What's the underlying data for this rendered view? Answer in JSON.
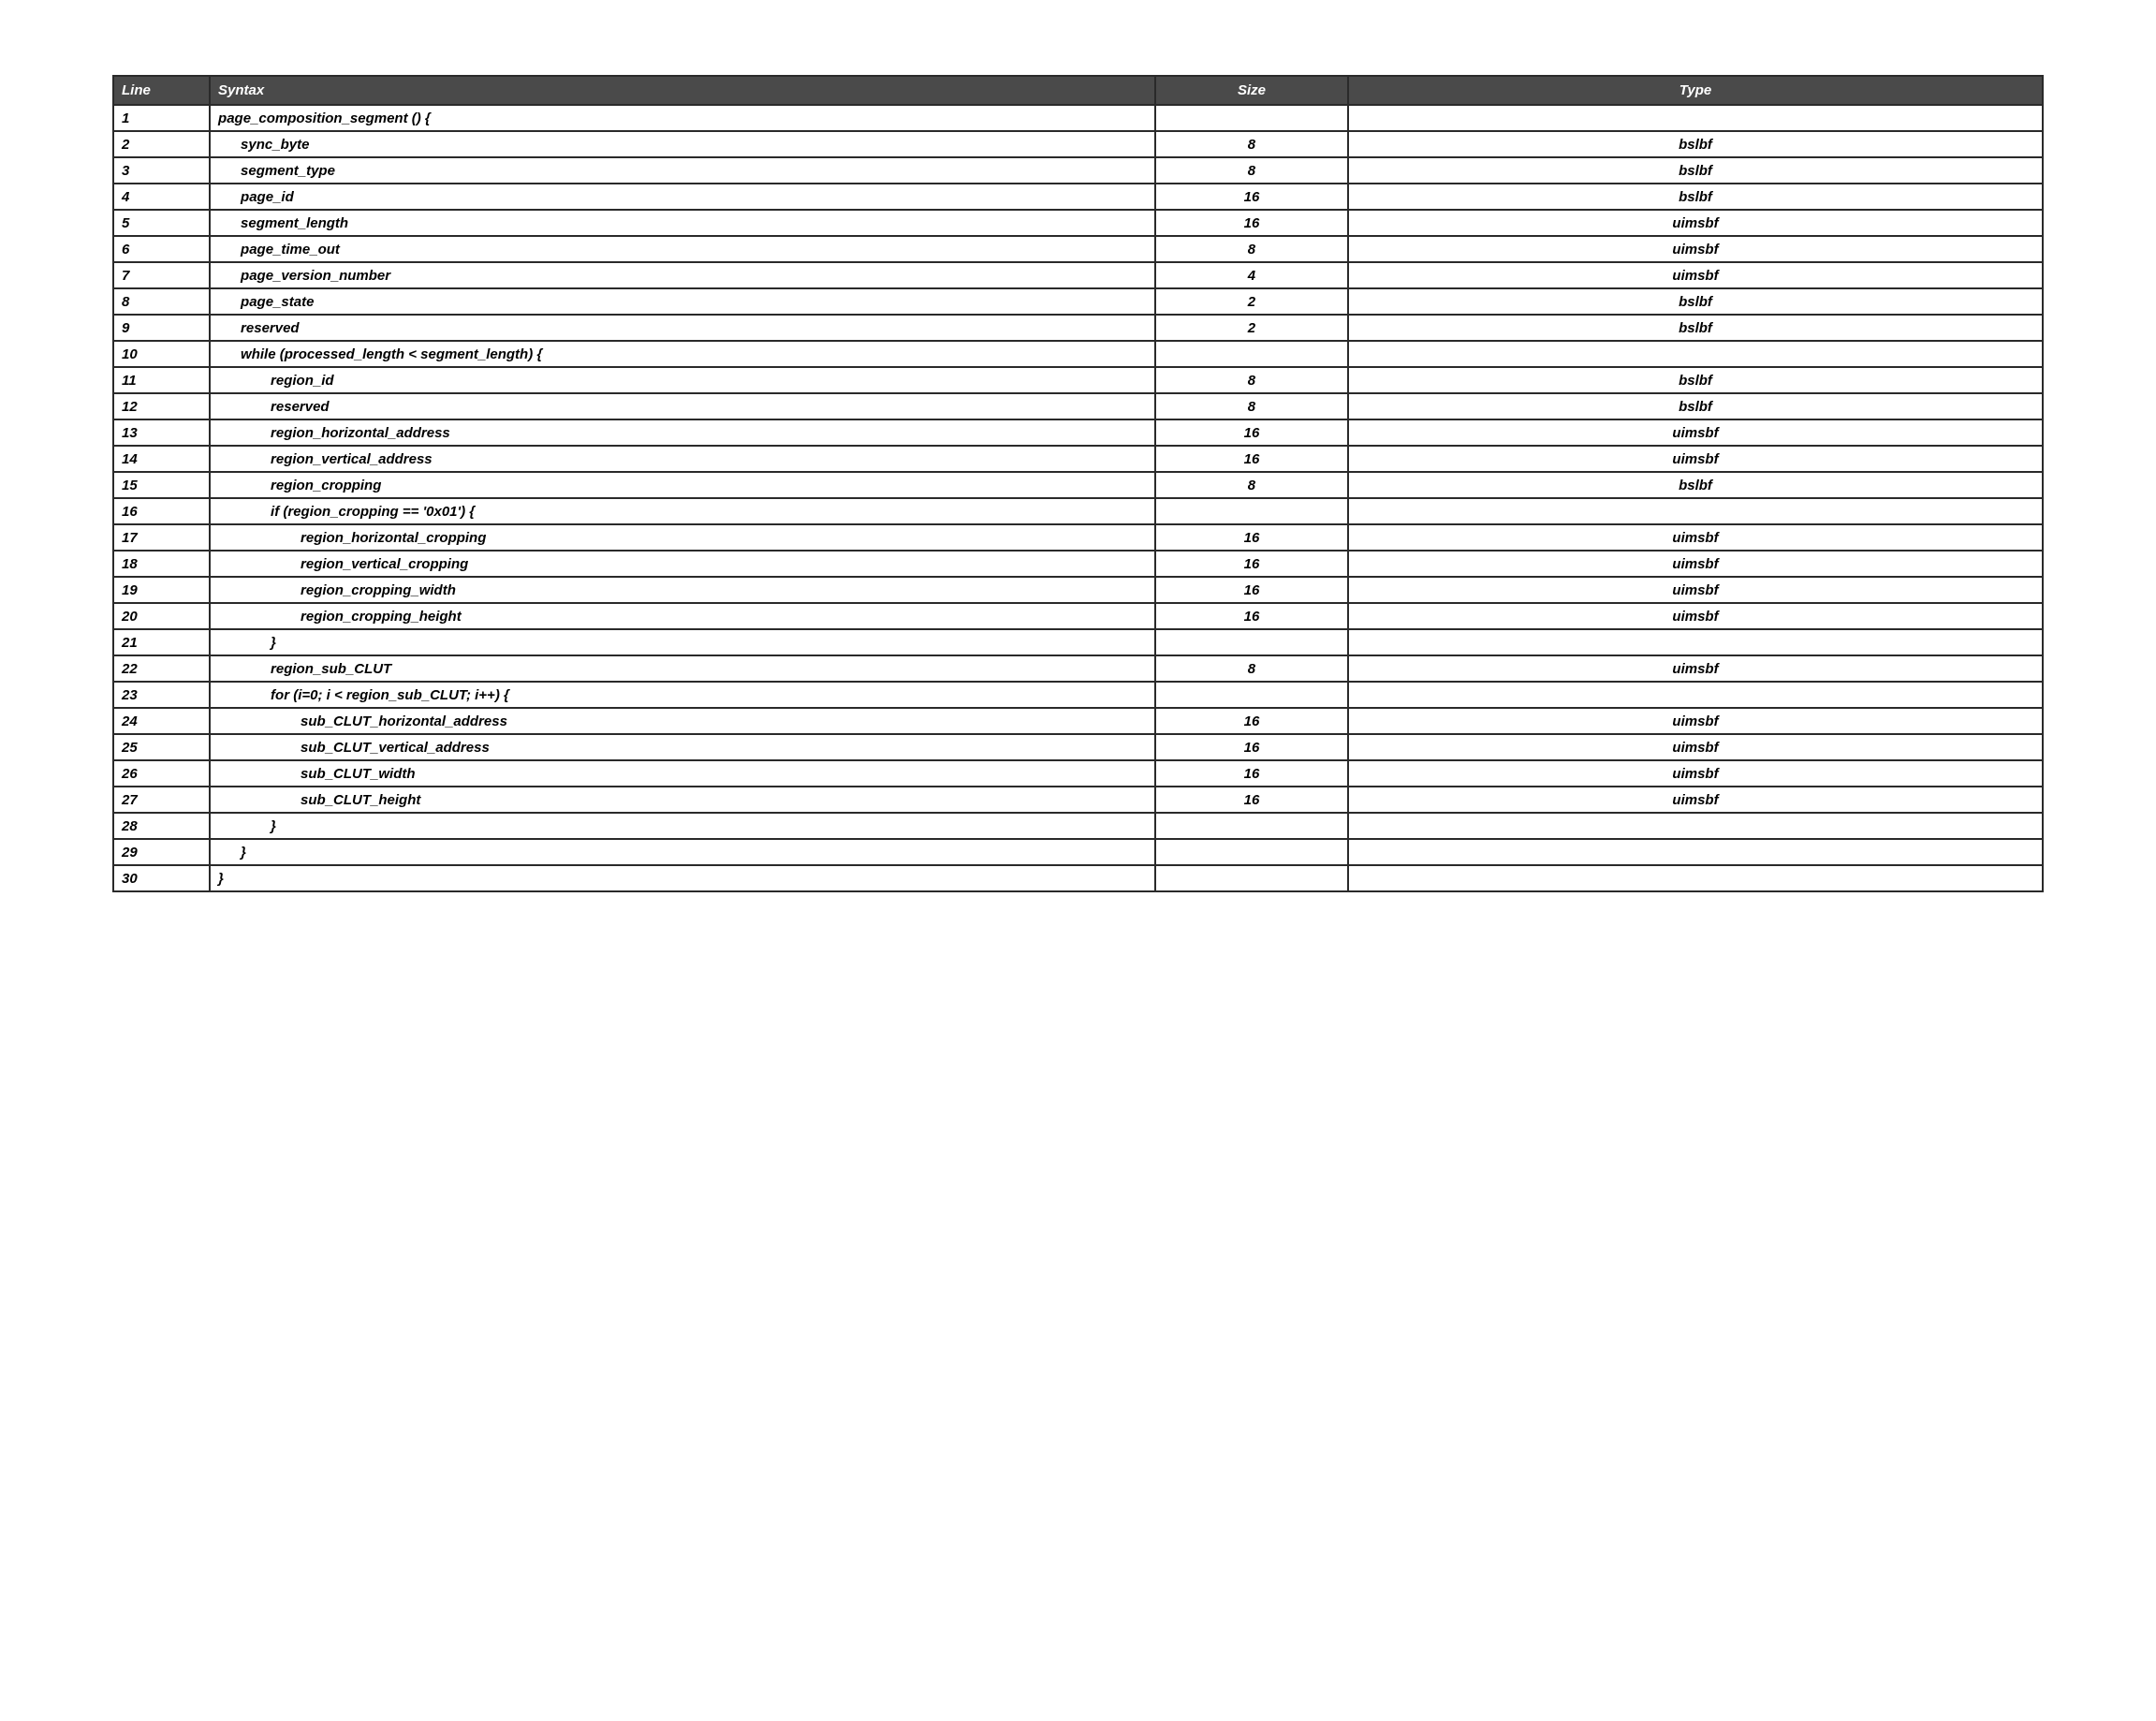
{
  "table": {
    "headers": {
      "line": "Line",
      "syntax": "Syntax",
      "size": "Size",
      "type": "Type"
    },
    "rows": [
      {
        "n": "1",
        "indent": 0,
        "syntax": "page_composition_segment () {",
        "size": "",
        "type": ""
      },
      {
        "n": "2",
        "indent": 1,
        "syntax": "sync_byte",
        "size": "8",
        "type": "bslbf"
      },
      {
        "n": "3",
        "indent": 1,
        "syntax": "segment_type",
        "size": "8",
        "type": "bslbf"
      },
      {
        "n": "4",
        "indent": 1,
        "syntax": "page_id",
        "size": "16",
        "type": "bslbf"
      },
      {
        "n": "5",
        "indent": 1,
        "syntax": "segment_length",
        "size": "16",
        "type": "uimsbf"
      },
      {
        "n": "6",
        "indent": 1,
        "syntax": "page_time_out",
        "size": "8",
        "type": "uimsbf"
      },
      {
        "n": "7",
        "indent": 1,
        "syntax": "page_version_number",
        "size": "4",
        "type": "uimsbf"
      },
      {
        "n": "8",
        "indent": 1,
        "syntax": "page_state",
        "size": "2",
        "type": "bslbf"
      },
      {
        "n": "9",
        "indent": 1,
        "syntax": "reserved",
        "size": "2",
        "type": "bslbf"
      },
      {
        "n": "10",
        "indent": 1,
        "syntax": "while (processed_length < segment_length) {",
        "size": "",
        "type": ""
      },
      {
        "n": "11",
        "indent": 2,
        "syntax": "region_id",
        "size": "8",
        "type": "bslbf"
      },
      {
        "n": "12",
        "indent": 2,
        "syntax": "reserved",
        "size": "8",
        "type": "bslbf"
      },
      {
        "n": "13",
        "indent": 2,
        "syntax": "region_horizontal_address",
        "size": "16",
        "type": "uimsbf"
      },
      {
        "n": "14",
        "indent": 2,
        "syntax": "region_vertical_address",
        "size": "16",
        "type": "uimsbf"
      },
      {
        "n": "15",
        "indent": 2,
        "syntax": "region_cropping",
        "size": "8",
        "type": "bslbf"
      },
      {
        "n": "16",
        "indent": 2,
        "syntax": "if (region_cropping == '0x01') {",
        "size": "",
        "type": ""
      },
      {
        "n": "17",
        "indent": 3,
        "syntax": "region_horizontal_cropping",
        "size": "16",
        "type": "uimsbf"
      },
      {
        "n": "18",
        "indent": 3,
        "syntax": "region_vertical_cropping",
        "size": "16",
        "type": "uimsbf"
      },
      {
        "n": "19",
        "indent": 3,
        "syntax": "region_cropping_width",
        "size": "16",
        "type": "uimsbf"
      },
      {
        "n": "20",
        "indent": 3,
        "syntax": "region_cropping_height",
        "size": "16",
        "type": "uimsbf"
      },
      {
        "n": "21",
        "indent": 2,
        "syntax": "}",
        "size": "",
        "type": ""
      },
      {
        "n": "22",
        "indent": 2,
        "syntax": "region_sub_CLUT",
        "size": "8",
        "type": "uimsbf"
      },
      {
        "n": "23",
        "indent": 2,
        "syntax": "for (i=0; i < region_sub_CLUT; i++) {",
        "size": "",
        "type": ""
      },
      {
        "n": "24",
        "indent": 3,
        "syntax": "sub_CLUT_horizontal_address",
        "size": "16",
        "type": "uimsbf"
      },
      {
        "n": "25",
        "indent": 3,
        "syntax": "sub_CLUT_vertical_address",
        "size": "16",
        "type": "uimsbf"
      },
      {
        "n": "26",
        "indent": 3,
        "syntax": "sub_CLUT_width",
        "size": "16",
        "type": "uimsbf"
      },
      {
        "n": "27",
        "indent": 3,
        "syntax": "sub_CLUT_height",
        "size": "16",
        "type": "uimsbf"
      },
      {
        "n": "28",
        "indent": 2,
        "syntax": "}",
        "size": "",
        "type": ""
      },
      {
        "n": "29",
        "indent": 1,
        "syntax": "}",
        "size": "",
        "type": ""
      },
      {
        "n": "30",
        "indent": 0,
        "syntax": "}",
        "size": "",
        "type": ""
      }
    ],
    "colors": {
      "header_bg": "#4a4a4a",
      "header_fg": "#ffffff",
      "border": "#2a2a2a",
      "text": "#000000",
      "background": "#ffffff"
    },
    "font_sizes": {
      "header": 15,
      "cell": 15
    }
  }
}
